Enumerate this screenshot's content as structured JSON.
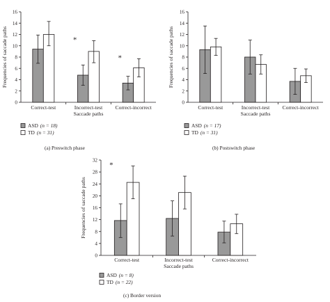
{
  "colors": {
    "asd": "#999999",
    "td": "#ffffff",
    "ink": "#231f20"
  },
  "chart_data": [
    {
      "type": "bar",
      "caption": "(a)   Preswitch phase",
      "xlabel": "Saccade paths",
      "ylabel": "Frequencies of saccade paths",
      "ylim": [
        0,
        16
      ],
      "yticks": [
        0,
        2,
        4,
        6,
        8,
        10,
        12,
        14,
        16
      ],
      "ytick_labels": [
        "0",
        "2",
        "4",
        "6",
        "8",
        "10",
        "12",
        "14",
        "16"
      ],
      "categories": [
        "Correct-test",
        "Incorrect-test",
        "Correct-incorrect"
      ],
      "series": [
        {
          "name": "ASD",
          "n_label": "(n = 18)",
          "values": [
            9.4,
            4.8,
            3.4
          ],
          "err_low": [
            6.9,
            3.0,
            2.2
          ],
          "err_high": [
            11.9,
            6.6,
            4.6
          ]
        },
        {
          "name": "TD",
          "n_label": "(n = 31)",
          "values": [
            12.0,
            9.0,
            6.1
          ],
          "err_low": [
            10.0,
            7.0,
            4.5
          ],
          "err_high": [
            14.3,
            10.9,
            7.7
          ]
        }
      ],
      "significance": [
        {
          "category_index": 1,
          "symbol": "*"
        },
        {
          "category_index": 2,
          "symbol": "*"
        }
      ]
    },
    {
      "type": "bar",
      "caption": "(b)   Postswitch phase",
      "xlabel": "Saccade paths",
      "ylabel": "Frequencies of saccade paths",
      "ylim": [
        0,
        16
      ],
      "yticks": [
        0,
        2,
        4,
        6,
        8,
        10,
        12,
        14,
        16
      ],
      "ytick_labels": [
        "0",
        "2",
        "4",
        "6",
        "8",
        "10",
        "12",
        "14",
        "16"
      ],
      "categories": [
        "Correct-test",
        "Incorrect-test",
        "Correct-incorrect"
      ],
      "series": [
        {
          "name": "ASD",
          "n_label": "(n = 17)",
          "values": [
            9.3,
            8.0,
            3.7
          ],
          "err_low": [
            5.1,
            5.0,
            1.4
          ],
          "err_high": [
            13.5,
            11.0,
            6.0
          ]
        },
        {
          "name": "TD",
          "n_label": "(n = 31)",
          "values": [
            9.8,
            6.7,
            4.7
          ],
          "err_low": [
            8.3,
            5.0,
            3.5
          ],
          "err_high": [
            11.3,
            8.4,
            5.9
          ]
        }
      ],
      "significance": []
    },
    {
      "type": "bar",
      "caption": "(c)   Border version",
      "xlabel": "Saccade paths",
      "ylabel": "Frequencies of saccade paths",
      "ylim": [
        0,
        32
      ],
      "yticks": [
        0,
        4,
        8,
        12,
        16,
        20,
        24,
        28,
        32
      ],
      "ytick_labels": [
        "0",
        "4",
        "8",
        "12",
        "16",
        "20",
        "24",
        "28",
        "32"
      ],
      "categories": [
        "Correct-test",
        "Incorrect-test",
        "Correct-incorrect"
      ],
      "series": [
        {
          "name": "ASD",
          "n_label": "(n = 8)",
          "values": [
            11.7,
            12.4,
            7.8
          ],
          "err_low": [
            6.0,
            6.5,
            4.2
          ],
          "err_high": [
            17.3,
            18.3,
            11.5
          ]
        },
        {
          "name": "TD",
          "n_label": "(n = 22)",
          "values": [
            24.5,
            21.1,
            10.6
          ],
          "err_low": [
            19.0,
            15.6,
            7.3
          ],
          "err_high": [
            30.0,
            26.6,
            13.8
          ]
        }
      ],
      "significance": [
        {
          "category_index": 0,
          "symbol": "*"
        }
      ]
    }
  ]
}
